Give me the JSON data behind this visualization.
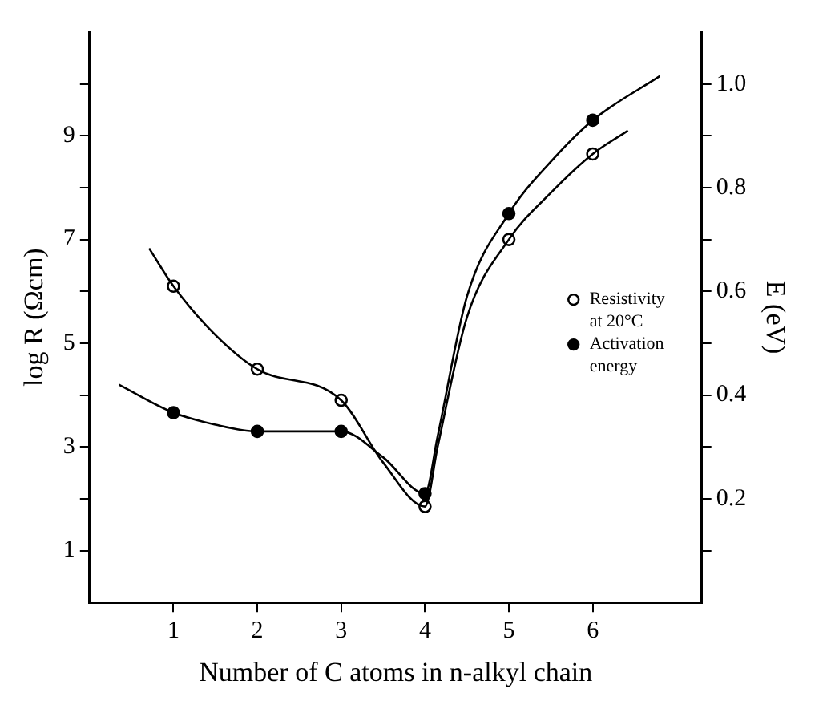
{
  "chart_data": {
    "type": "scatter",
    "xlabel": "Number of C atoms in n-alkyl chain",
    "ylabel": "log R (Ωcm)",
    "y2label": "E (eV)",
    "xlim": [
      0,
      7.3
    ],
    "xticks": [
      1,
      2,
      3,
      4,
      5,
      6
    ],
    "ylim": [
      0,
      11
    ],
    "yticks": [
      1,
      {
        "value": 2,
        "label": null
      },
      3,
      {
        "value": 4,
        "label": null
      },
      5,
      {
        "value": 6,
        "label": null
      },
      7,
      {
        "value": 8,
        "label": null
      },
      9,
      {
        "value": 10,
        "label": null
      }
    ],
    "y2lim": [
      0,
      1.1
    ],
    "y2ticks": [
      {
        "value": 0.1,
        "label": null
      },
      0.2,
      {
        "value": 0.3,
        "label": null
      },
      0.4,
      {
        "value": 0.5,
        "label": null
      },
      0.6,
      {
        "value": 0.7,
        "label": null
      },
      0.8,
      {
        "value": 0.9,
        "label": null
      },
      {
        "value": 1.0,
        "label": "1.0"
      }
    ],
    "legend": "right",
    "grid": false,
    "series": [
      {
        "type": "line",
        "marker": "none",
        "color": "#000000",
        "x": [
          0.71,
          1,
          1.5,
          2,
          3,
          3.5,
          4,
          4.15,
          4.5,
          5,
          5.5,
          6,
          6.42
        ],
        "values": [
          6.83,
          6.1,
          5.16,
          4.5,
          3.9,
          2.7,
          1.85,
          3.0,
          5.5,
          7.0,
          7.9,
          8.65,
          9.1
        ]
      },
      {
        "type": "line",
        "marker": "none",
        "axis": "y2",
        "color": "#000000",
        "x": [
          0.35,
          1,
          1.5,
          2,
          3,
          3.5,
          4,
          4.15,
          4.5,
          5,
          5.5,
          6,
          6.8
        ],
        "values": [
          0.42,
          0.366,
          0.343,
          0.33,
          0.33,
          0.28,
          0.21,
          0.32,
          0.59,
          0.75,
          0.85,
          0.93,
          1.015
        ]
      },
      {
        "marker": "circle",
        "name": "Resistivity at 20°C",
        "color": "#ffffff",
        "x": [
          1,
          2,
          3,
          4,
          5,
          6
        ],
        "values": [
          6.1,
          4.5,
          3.9,
          1.85,
          7.0,
          8.65
        ]
      },
      {
        "marker": "circle",
        "name": "Activation energy",
        "axis": "y2",
        "color": "#000000",
        "x": [
          1,
          2,
          3,
          4,
          5,
          6
        ],
        "values": [
          0.366,
          0.33,
          0.33,
          0.21,
          0.75,
          0.93
        ]
      }
    ]
  }
}
